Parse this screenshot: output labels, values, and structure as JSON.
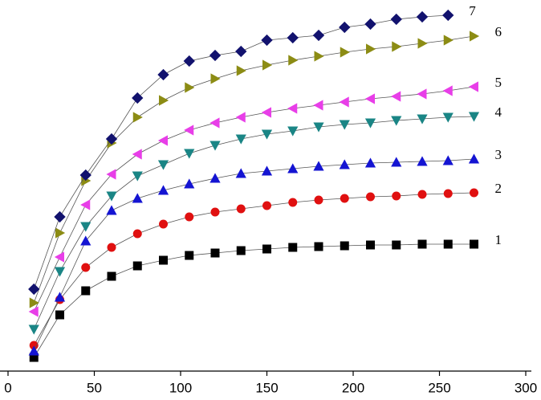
{
  "chart_data": {
    "type": "line",
    "x": [
      15,
      30,
      45,
      60,
      75,
      90,
      105,
      120,
      135,
      150,
      165,
      180,
      195,
      210,
      225,
      240,
      255,
      270
    ],
    "xlim": [
      0,
      300
    ],
    "xticks": [
      0,
      50,
      100,
      150,
      200,
      250,
      300
    ],
    "ylim": [
      0,
      462
    ],
    "series": [
      {
        "name": "1",
        "color": "#000000",
        "marker": "square",
        "values": [
          17,
          70,
          100,
          118,
          131,
          138,
          144,
          147,
          150,
          152,
          154,
          155,
          156,
          157,
          157,
          158,
          158,
          158
        ]
      },
      {
        "name": "2",
        "color": "#e01010",
        "marker": "circle",
        "values": [
          32,
          89,
          129,
          154,
          171,
          183,
          192,
          198,
          202,
          206,
          210,
          213,
          215,
          217,
          218,
          220,
          221,
          222
        ]
      },
      {
        "name": "3",
        "color": "#1414d2",
        "marker": "triangle-up",
        "values": [
          25,
          92,
          162,
          200,
          215,
          225,
          233,
          240,
          246,
          249,
          252,
          255,
          257,
          259,
          260,
          261,
          262,
          264
        ]
      },
      {
        "name": "4",
        "color": "#1a8585",
        "marker": "triangle-down",
        "values": [
          52,
          124,
          180,
          218,
          243,
          257,
          271,
          281,
          289,
          295,
          299,
          304,
          307,
          309,
          312,
          314,
          316,
          317
        ]
      },
      {
        "name": "5",
        "color": "#e83ee8",
        "marker": "triangle-left",
        "values": [
          74,
          142,
          207,
          245,
          270,
          287,
          300,
          309,
          316,
          322,
          327,
          331,
          335,
          339,
          342,
          345,
          349,
          354
        ]
      },
      {
        "name": "6",
        "color": "#8c8c14",
        "marker": "triangle-right",
        "values": [
          85,
          172,
          237,
          284,
          316,
          337,
          353,
          364,
          374,
          381,
          387,
          392,
          397,
          401,
          404,
          408,
          412,
          417
        ]
      },
      {
        "name": "7",
        "color": "#12126e",
        "marker": "diamond",
        "values": [
          102,
          192,
          244,
          289,
          340,
          369,
          386,
          393,
          398,
          412,
          415,
          418,
          428,
          432,
          438,
          441,
          443,
          null
        ]
      }
    ]
  }
}
